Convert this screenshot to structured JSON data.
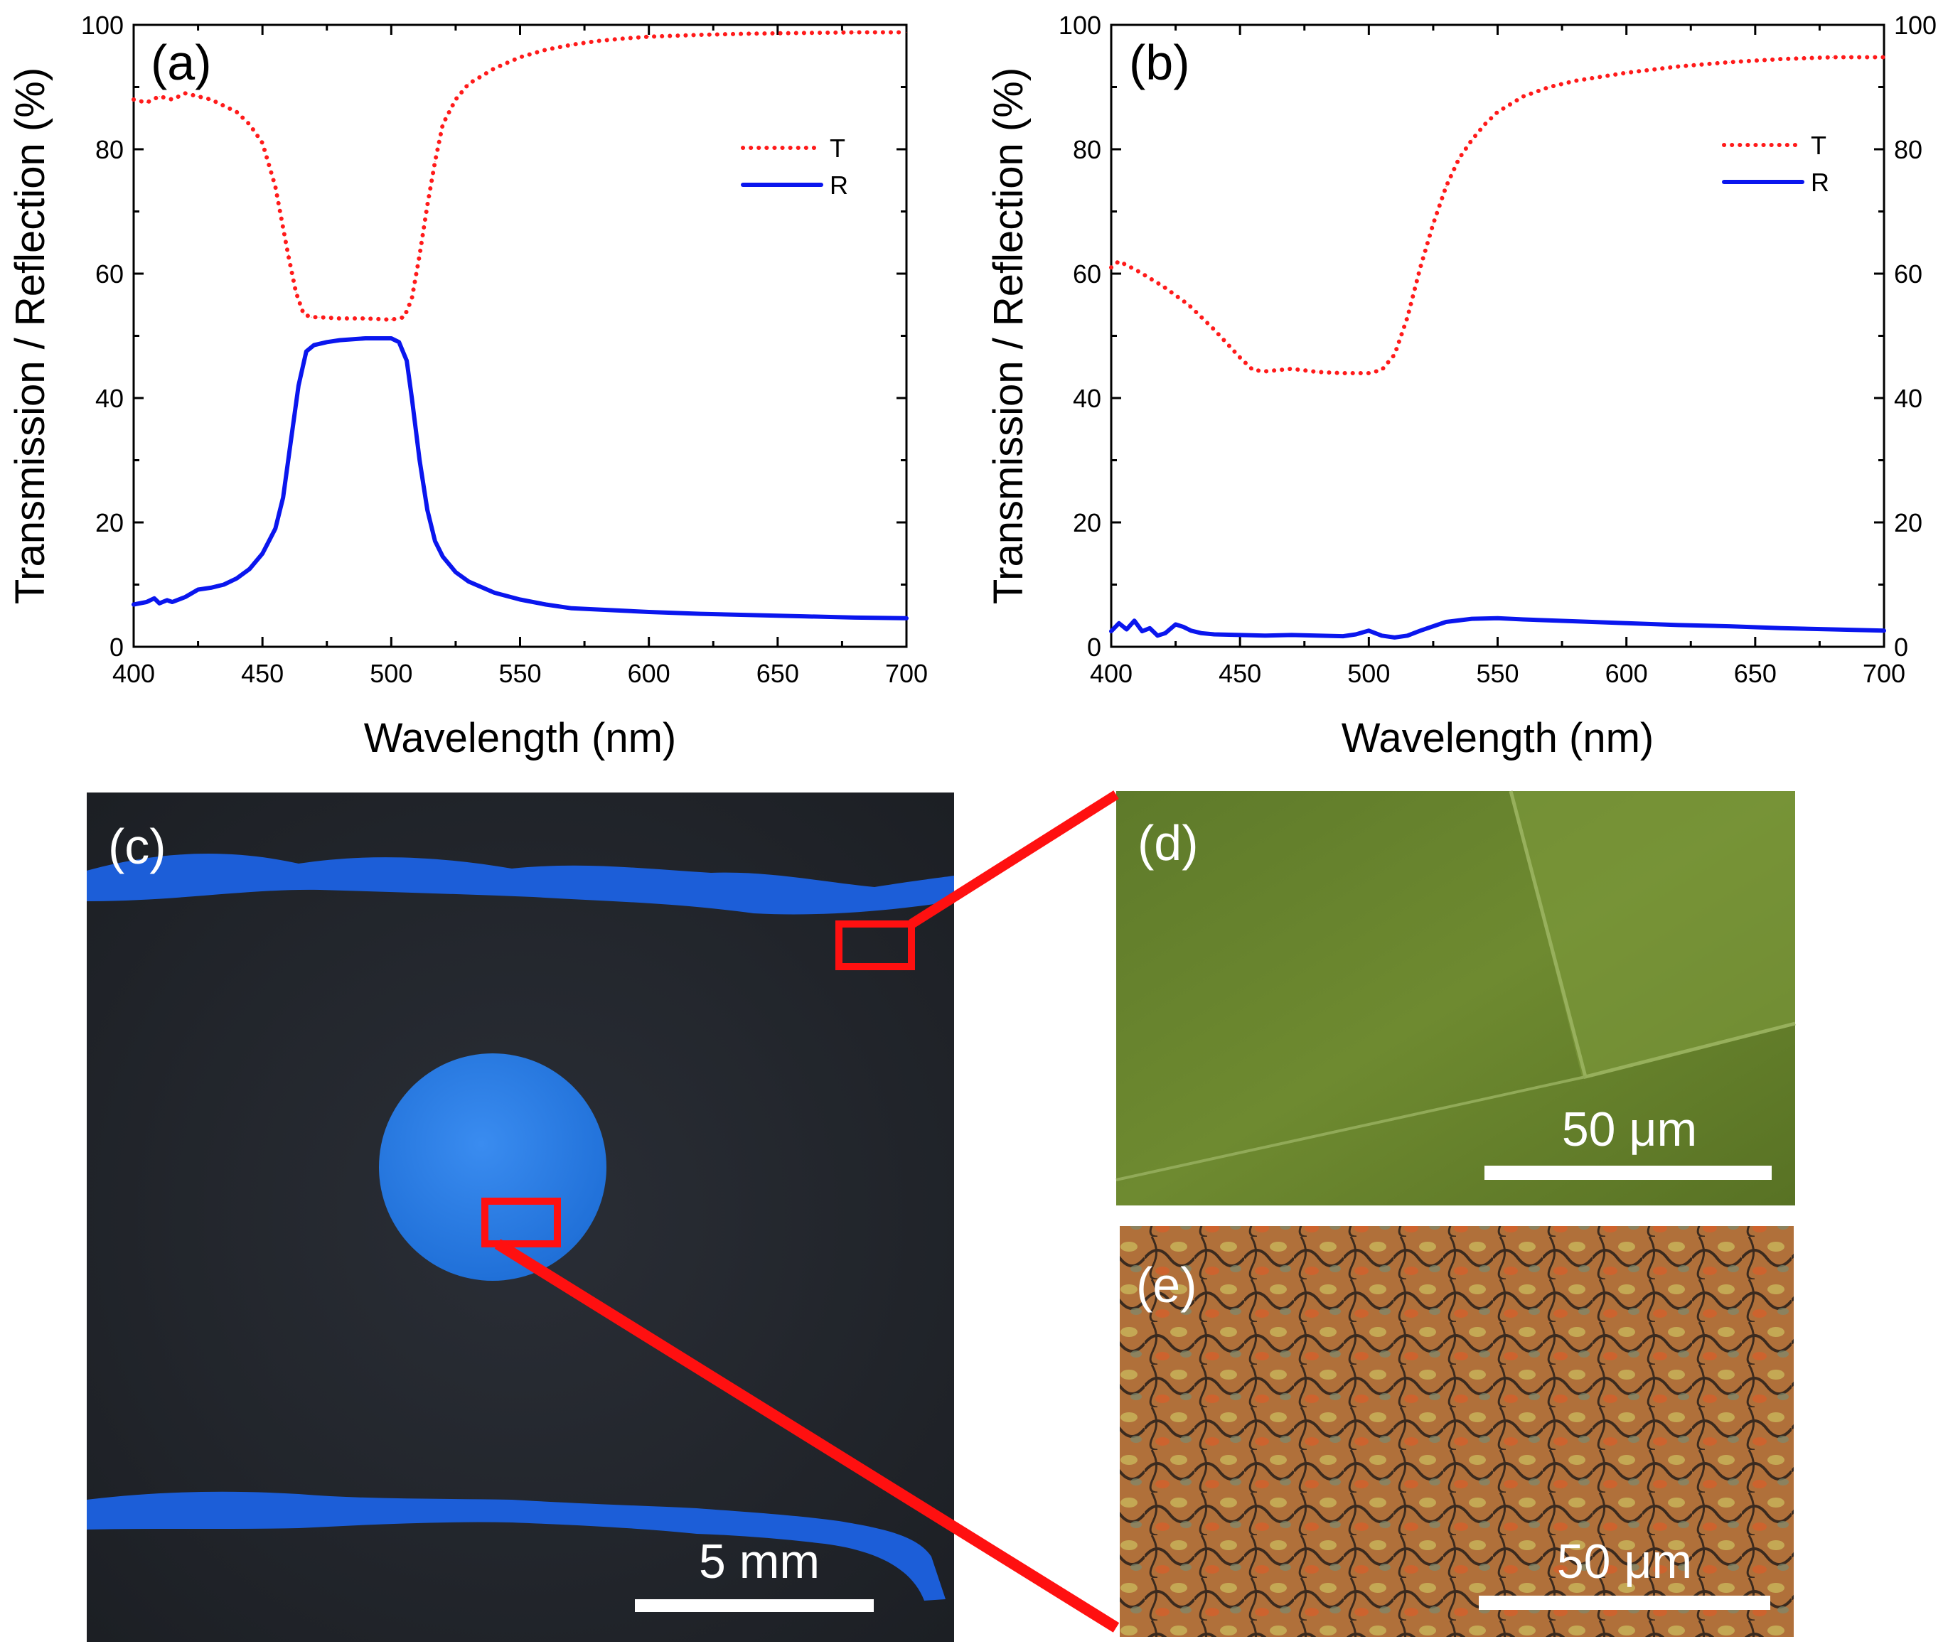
{
  "chart_data": [
    {
      "panel": "(a)",
      "type": "line",
      "xlabel": "Wavelength (nm)",
      "ylabel": "Transmission / Reflection (%)",
      "xlim": [
        400,
        700
      ],
      "ylim": [
        0,
        100
      ],
      "xticks": [
        "400",
        "450",
        "500",
        "550",
        "600",
        "650",
        "700"
      ],
      "yticks": [
        "0",
        "20",
        "40",
        "60",
        "80",
        "100"
      ],
      "right_ticks": false,
      "legend": [
        "T",
        "R"
      ],
      "series": [
        {
          "name": "T",
          "style": "dotted",
          "color": "#ff1a1a",
          "x": [
            400,
            405,
            410,
            415,
            420,
            425,
            430,
            435,
            440,
            445,
            450,
            455,
            460,
            463,
            466,
            469,
            472,
            480,
            490,
            500,
            505,
            508,
            511,
            514,
            517,
            520,
            525,
            530,
            540,
            550,
            560,
            570,
            580,
            590,
            600,
            620,
            640,
            660,
            680,
            700
          ],
          "values": [
            88,
            87.5,
            88.5,
            88,
            89,
            88.5,
            88,
            87,
            86,
            84,
            81,
            74,
            63,
            57,
            53.5,
            53,
            53,
            52.8,
            52.8,
            52.6,
            53,
            56,
            63,
            71,
            78,
            84,
            88,
            90.5,
            93,
            94.8,
            96,
            96.8,
            97.4,
            97.8,
            98.1,
            98.4,
            98.6,
            98.7,
            98.8,
            98.8
          ]
        },
        {
          "name": "R",
          "style": "solid",
          "color": "#0a16ee",
          "x": [
            400,
            405,
            408,
            410,
            413,
            415,
            420,
            425,
            430,
            435,
            440,
            445,
            450,
            455,
            458,
            461,
            464,
            467,
            470,
            475,
            480,
            490,
            500,
            503,
            506,
            508,
            511,
            514,
            517,
            520,
            525,
            530,
            540,
            550,
            560,
            570,
            580,
            600,
            620,
            640,
            660,
            680,
            700
          ],
          "values": [
            6.8,
            7.2,
            7.8,
            7.0,
            7.5,
            7.2,
            8.0,
            9.2,
            9.5,
            10.0,
            11.0,
            12.5,
            15.0,
            19.0,
            24.0,
            33.0,
            42.0,
            47.5,
            48.5,
            49.0,
            49.3,
            49.6,
            49.6,
            49.0,
            46.0,
            40.0,
            30.0,
            22.0,
            17.0,
            14.5,
            12.0,
            10.5,
            8.7,
            7.6,
            6.8,
            6.2,
            6.0,
            5.6,
            5.3,
            5.1,
            4.9,
            4.7,
            4.6
          ]
        }
      ]
    },
    {
      "panel": "(b)",
      "type": "line",
      "xlabel": "Wavelength (nm)",
      "ylabel": "Transmission / Reflection (%)",
      "xlim": [
        400,
        700
      ],
      "ylim": [
        0,
        100
      ],
      "xticks": [
        "400",
        "450",
        "500",
        "550",
        "600",
        "650",
        "700"
      ],
      "yticks": [
        "0",
        "20",
        "40",
        "60",
        "80",
        "100"
      ],
      "right_ticks": true,
      "legend": [
        "T",
        "R"
      ],
      "series": [
        {
          "name": "T",
          "style": "dotted",
          "color": "#ff1a1a",
          "x": [
            400,
            403,
            410,
            420,
            430,
            440,
            450,
            455,
            460,
            470,
            480,
            490,
            500,
            505,
            510,
            515,
            520,
            525,
            530,
            535,
            540,
            545,
            550,
            560,
            570,
            580,
            600,
            620,
            640,
            660,
            680,
            700
          ],
          "values": [
            61,
            62,
            60.5,
            58,
            55,
            51,
            46.5,
            44.5,
            44.3,
            44.7,
            44.2,
            44.0,
            44.0,
            44.5,
            47,
            53,
            61,
            68,
            74,
            78.5,
            81.5,
            84,
            86,
            88.5,
            90,
            91,
            92.3,
            93.3,
            94,
            94.5,
            94.8,
            94.8
          ]
        },
        {
          "name": "R",
          "style": "solid",
          "color": "#0a16ee",
          "x": [
            400,
            403,
            406,
            409,
            412,
            415,
            418,
            421,
            425,
            428,
            431,
            435,
            440,
            450,
            460,
            470,
            480,
            490,
            495,
            500,
            505,
            510,
            515,
            520,
            525,
            530,
            540,
            550,
            560,
            580,
            600,
            620,
            640,
            660,
            680,
            700
          ],
          "values": [
            2.5,
            3.8,
            2.8,
            4.2,
            2.5,
            3.0,
            1.8,
            2.2,
            3.6,
            3.2,
            2.6,
            2.2,
            2.0,
            1.9,
            1.8,
            1.9,
            1.8,
            1.7,
            2.0,
            2.6,
            1.8,
            1.5,
            1.8,
            2.6,
            3.3,
            4.0,
            4.5,
            4.6,
            4.4,
            4.1,
            3.8,
            3.5,
            3.3,
            3.0,
            2.8,
            2.6
          ]
        }
      ]
    }
  ],
  "photos": {
    "c": {
      "label": "(c)",
      "scale_bar": "5 mm"
    },
    "d": {
      "label": "(d)",
      "scale_bar": "50 μm"
    },
    "e": {
      "label": "(e)",
      "scale_bar": "50 μm"
    }
  }
}
